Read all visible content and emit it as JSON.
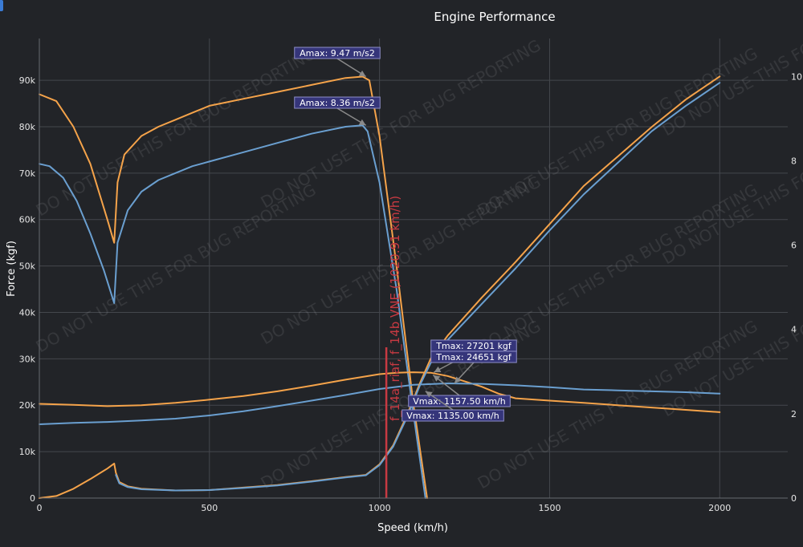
{
  "colors": {
    "background": "#222428",
    "grid": "#44474d",
    "orange": "#f5a34a",
    "blue": "#6a9fd0",
    "red": "#c83a42",
    "annotation_bg": "#35357a",
    "annotation_border": "#8e8ec8",
    "arrow": "#8a8a8a",
    "watermark": "rgba(255,255,255,0.09)"
  },
  "chart_data": {
    "type": "line",
    "title": "Engine Performance",
    "xlabel": "Speed (km/h)",
    "ylabel": "Force (kgf)",
    "xlim": [
      0,
      2200
    ],
    "ylim": [
      0,
      99000
    ],
    "y2lim": [
      0,
      10.9
    ],
    "xticks": [
      0,
      500,
      1000,
      1500,
      2000
    ],
    "yticks": [
      0,
      10000,
      20000,
      30000,
      40000,
      50000,
      60000,
      70000,
      80000,
      90000
    ],
    "ytick_labels": [
      "0",
      "10k",
      "20k",
      "30k",
      "40k",
      "50k",
      "60k",
      "70k",
      "80k",
      "90k"
    ],
    "y2ticks": [
      0,
      2,
      4,
      6,
      8,
      10
    ],
    "grid": true,
    "legend": "none",
    "watermark": "DO NOT USE THIS FOR BUG REPORTING",
    "series": [
      {
        "color": "orange",
        "axis": "y",
        "style": "thrust",
        "x": [
          0,
          50,
          100,
          150,
          200,
          220,
          230,
          250,
          300,
          350,
          400,
          450,
          500,
          600,
          700,
          800,
          900,
          950,
          970,
          1000,
          1050,
          1100,
          1140
        ],
        "y": [
          87000,
          85500,
          80000,
          72000,
          60000,
          55000,
          68000,
          74000,
          78000,
          80000,
          81500,
          83000,
          84500,
          86000,
          87500,
          89000,
          90500,
          90800,
          90000,
          78000,
          50000,
          20000,
          0
        ]
      },
      {
        "color": "blue",
        "axis": "y",
        "style": "thrust",
        "x": [
          0,
          30,
          70,
          110,
          150,
          190,
          220,
          230,
          260,
          300,
          350,
          400,
          450,
          500,
          600,
          700,
          800,
          900,
          950,
          965,
          1000,
          1050,
          1100,
          1135
        ],
        "y": [
          72000,
          71500,
          69000,
          64000,
          57000,
          49000,
          42000,
          55000,
          62000,
          66000,
          68500,
          70000,
          71500,
          72500,
          74500,
          76500,
          78500,
          80000,
          80300,
          79000,
          68000,
          45000,
          18000,
          0
        ]
      },
      {
        "color": "orange",
        "axis": "y",
        "style": "drag",
        "x": [
          0,
          100,
          200,
          300,
          400,
          500,
          600,
          700,
          800,
          900,
          1000,
          1050,
          1100,
          1150,
          1200,
          1300,
          1350,
          1400,
          1500,
          1600,
          1700,
          1800,
          1900,
          2000
        ],
        "y": [
          20300,
          20100,
          19800,
          20000,
          20500,
          21200,
          22000,
          23000,
          24200,
          25500,
          26700,
          27000,
          27100,
          27000,
          26300,
          24000,
          22500,
          21500,
          21000,
          20500,
          20000,
          19500,
          19000,
          18500
        ]
      },
      {
        "color": "blue",
        "axis": "y",
        "style": "drag",
        "x": [
          0,
          100,
          200,
          300,
          400,
          500,
          600,
          700,
          800,
          900,
          1000,
          1100,
          1200,
          1300,
          1400,
          1500,
          1600,
          1700,
          1800,
          1900,
          2000
        ],
        "y": [
          15900,
          16200,
          16400,
          16700,
          17100,
          17800,
          18700,
          19800,
          21000,
          22200,
          23500,
          24400,
          24700,
          24600,
          24300,
          23900,
          23400,
          23200,
          23000,
          22800,
          22500
        ]
      },
      {
        "color": "orange",
        "axis": "y2",
        "style": "time",
        "x": [
          0,
          50,
          100,
          150,
          200,
          220,
          225,
          235,
          260,
          300,
          400,
          500,
          600,
          700,
          800,
          900,
          960,
          1000,
          1040,
          1080,
          1120,
          1150,
          1200,
          1300,
          1400,
          1500,
          1600,
          1700,
          1800,
          1900,
          2000
        ],
        "y": [
          0,
          0.05,
          0.22,
          0.45,
          0.7,
          0.82,
          0.6,
          0.38,
          0.28,
          0.22,
          0.18,
          0.19,
          0.25,
          0.31,
          0.4,
          0.5,
          0.55,
          0.8,
          1.25,
          1.95,
          2.75,
          3.3,
          3.85,
          4.75,
          5.6,
          6.5,
          7.4,
          8.1,
          8.8,
          9.45,
          10.0
        ]
      },
      {
        "color": "blue",
        "axis": "y2",
        "style": "time",
        "x": [
          225,
          235,
          260,
          300,
          400,
          500,
          600,
          700,
          800,
          900,
          960,
          1000,
          1040,
          1080,
          1120,
          1150,
          1200,
          1300,
          1400,
          1500,
          1600,
          1700,
          1800,
          1900,
          2000
        ],
        "y": [
          0.55,
          0.35,
          0.26,
          0.21,
          0.18,
          0.19,
          0.24,
          0.3,
          0.39,
          0.49,
          0.54,
          0.78,
          1.22,
          1.9,
          2.7,
          3.2,
          3.75,
          4.6,
          5.45,
          6.35,
          7.2,
          7.95,
          8.7,
          9.3,
          9.85
        ]
      }
    ],
    "vline": {
      "x": 1020,
      "label": "f_14a_riaf, f_14b VNE (1020.91 km/h)",
      "color": "red"
    },
    "annotations": [
      {
        "text": "Amax: 9.47 m/s2",
        "x": 960,
        "y": 90800,
        "ax": 420,
        "ay": 66
      },
      {
        "text": "Amax: 8.36 m/s2",
        "x": 960,
        "y": 80300,
        "ax": 420,
        "ay": 128
      },
      {
        "text": "Tmax: 27201 kgf",
        "x": 1160,
        "y": 27100,
        "ax": 590,
        "ay": 431
      },
      {
        "text": "Tmax: 24651 kgf",
        "x": 1220,
        "y": 24700,
        "ax": 590,
        "ay": 445
      },
      {
        "text": "Vmax: 1157.50 km/h",
        "x": 1157.5,
        "y": 26500,
        "ax": 572,
        "ay": 500
      },
      {
        "text": "Vmax: 1135.00 km/h",
        "x": 1135,
        "y": 23000,
        "ax": 564,
        "ay": 518
      }
    ]
  }
}
